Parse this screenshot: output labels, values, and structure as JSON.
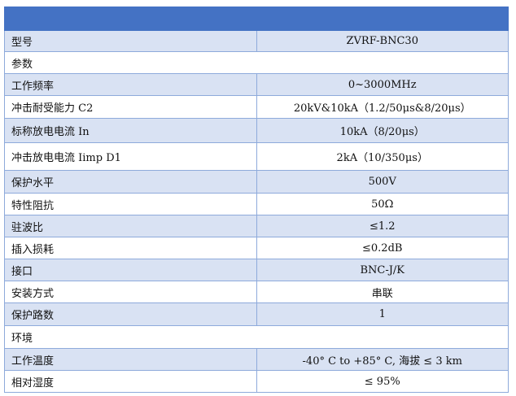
{
  "colors": {
    "header": "#4472c4",
    "band": "#d9e2f3",
    "border": "#8eaadb"
  },
  "rows": [
    {
      "label": "型号",
      "value": "ZVRF-BNC30"
    },
    {
      "label": "参数",
      "section": true
    },
    {
      "label": "工作频率",
      "value": "0~3000MHz"
    },
    {
      "label": "冲击耐受能力 C2",
      "value": "20kV&10kA（1.2/50μs&8/20μs）"
    },
    {
      "label": "标称放电电流 In",
      "value": "10kA（8/20μs）"
    },
    {
      "label": "冲击放电电流 Iimp D1",
      "value": "2kA（10/350μs）"
    },
    {
      "label": "保护水平",
      "value": "500V"
    },
    {
      "label": "特性阻抗",
      "value": "50Ω"
    },
    {
      "label": "驻波比",
      "value": "≤1.2"
    },
    {
      "label": "插入损耗",
      "value": "≤0.2dB"
    },
    {
      "label": "接口",
      "value": "BNC-J/K"
    },
    {
      "label": "安装方式",
      "value": "串联"
    },
    {
      "label": "保护路数",
      "value": "1"
    },
    {
      "label": "环境",
      "section": true
    },
    {
      "label": "工作温度",
      "value": "-40° C to +85° C, 海拔 ≤ 3 km"
    },
    {
      "label": "相对湿度",
      "value": "≤ 95%"
    }
  ]
}
